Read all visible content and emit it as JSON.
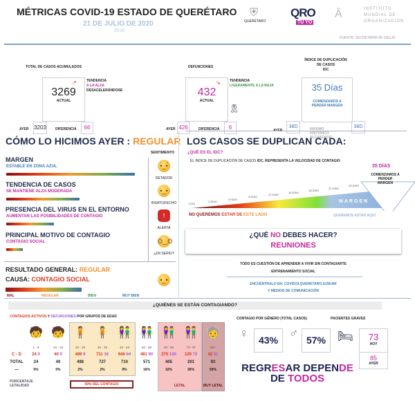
{
  "header": {
    "title": "MÉTRICAS COVID-19 ESTADO DE QUERÉTARO",
    "date": "21 DE JULIO DE 2020",
    "time": "20:30",
    "logo_queretaro": "QUERÉTARO",
    "logo_qro": "QRO",
    "logo_tuyo": "TÚ YO",
    "institute": [
      "INSTITUTO",
      "MUNDIAL DE",
      "ORGANIZACIÓN"
    ],
    "source": "FUENTE: SECRETARÍA DE SALUD."
  },
  "cases": {
    "title": "TOTAL DE CASOS ACUMULADOS",
    "actual": "3269",
    "actual_label": "ACTUAL",
    "trend_label": "TENDENCIA",
    "trend_1": "A LA ALZA",
    "trend_2": "DESACELERÁNDOSE",
    "ayer_label": "AYER",
    "ayer": "3203",
    "diff_label": "DIFERENCIA",
    "diff": "66"
  },
  "deaths": {
    "title": "DEFUNCIONES",
    "actual": "432",
    "actual_label": "ACTUAL",
    "trend_label": "TENDENCIA",
    "trend_1": "LIGERAMENTE A LA BAJA",
    "ayer_label": "AYER",
    "ayer": "426",
    "diff_label": "DIFERENCIA",
    "diff": "6"
  },
  "idc": {
    "title_1": "ÍNDICE DE DUPLICACIÓN",
    "title_2": "DE CASOS",
    "title_3": "IDC",
    "value": "35 Días",
    "note": "COMENZAMOS A PERDER MARGEN",
    "ayer_label": "AYER",
    "ayer": "38D",
    "max_label": "MÁXIMO HISTÓRICO ALCANZADO",
    "max": "38D"
  },
  "yesterday": {
    "title": "CÓMO LO HICIMOS AYER :",
    "rating": "REGULAR",
    "sentiment_label": "SENTIMIENTO",
    "items": [
      {
        "title": "MARGEN",
        "sub": "ESTABLE EN ZONA AZUL",
        "level": 1.0,
        "face": "RETADOR"
      },
      {
        "title": "TENDENCIA DE CASOS",
        "sub": "SE MANTIENE ALZA MODERADA",
        "level": 0.57,
        "face": "INSATISFECHO"
      },
      {
        "title": "PRESENCIA DEL VIRUS EN EL ENTORNO",
        "sub": "AUMENTAN LAS POSIBILIDADES DE CONTAGIO",
        "level": 0.37,
        "face": "ALERTA"
      },
      {
        "title": "PRINCIPAL MOTIVO DE CONTAGIO",
        "sub": "CONTAGIO SOCIAL",
        "level": 0.13,
        "face": "¿EN SERIO?"
      }
    ],
    "result_label": "RESULTADO GENERAL:",
    "result": "REGULAR",
    "cause_label": "CAUSA:",
    "cause": "CONTAGIO SOCIAL",
    "result_level": 0.58,
    "scale": [
      "MAL",
      "REGULAR",
      "BIEN",
      "MUY BIEN"
    ]
  },
  "duplication": {
    "title": "LOS CASOS SE DUPLICAN CADA:",
    "q": "¿QUÉ ES EL IDC?",
    "desc_1": "EL ÍNDICE DE DUPLICACIÓN DE CASOS ",
    "desc_2": "IDC, REPRESENTA LA VELOCIDAD DE CONTAGIO",
    "current": "35 DÍAS",
    "callout": "COMENZAMOS A PERDER MARGEN",
    "scale": [
      "1 DÍA",
      "3 DÍAS",
      "6 DÍAS",
      "9 DÍAS",
      "12 DÍAS",
      "15 DÍAS",
      "18 DÍAS",
      "21 DÍAS",
      "25 DÍAS"
    ],
    "margin": "MARGEN",
    "bad_1": "NO QUEREMOS ",
    "bad_2": "ESTAR DE ",
    "bad_3": "ESTE LADO",
    "good": "QUEREMOS ESTAR AQUÍ"
  },
  "dont": {
    "q_1": "¿QUÉ ",
    "q_2": "NO",
    "q_3": " DEBES HACER?",
    "answer": "REUNIONES"
  },
  "message": {
    "line_1": "TODO ES CUESTIÓN DE APRENDER A VIVIR SIN CONTAGIARTE",
    "line_2": "ENTRENAMIENTO SOCIAL",
    "link_1": "ENCUÉNTRALO EN: COVID19.QUERETARO.GOB.MX",
    "link_2": "Y MEDIOS DE COMUNICACIÓN"
  },
  "who": {
    "title": "¿QUIÉNES SE ESTÁN CONTAGIANDO?",
    "sub_1": "CONTAGIOS ACTIVOS",
    "sub_2": " Y ",
    "sub_3": "DEFUNCIONES",
    "sub_4": " POR GRUPOS DE EDAD",
    "cd_label": "C - D",
    "total_label": "TOTAL",
    "lethality_label": "PORCENTAJE LETALIDAD",
    "groups": [
      {
        "age": "1 - 9",
        "c": "24",
        "d": "0",
        "total": "24",
        "pct": "0%"
      },
      {
        "age": "10 - 19",
        "c": "40",
        "d": "0",
        "total": "40",
        "pct": "0%"
      },
      {
        "age": "20 - 29",
        "c": "489",
        "d": "9",
        "total": "498",
        "pct": "2%"
      },
      {
        "age": "30 - 39",
        "c": "711",
        "d": "16",
        "total": "727",
        "pct": "2%"
      },
      {
        "age": "40 - 49",
        "c": "646",
        "d": "64",
        "total": "710",
        "pct": "9%"
      },
      {
        "age": "50 - 59",
        "c": "481",
        "d": "90",
        "total": "571",
        "pct": "16%"
      },
      {
        "age": "60 - 69",
        "c": "275",
        "d": "130",
        "total": "405",
        "pct": "32%"
      },
      {
        "age": "70- 79",
        "c": "129",
        "d": "72",
        "total": "201",
        "pct": "36%"
      },
      {
        "age": "80+",
        "c": "42",
        "d": "51",
        "total": "93",
        "pct": "55%"
      }
    ],
    "contagion_note_pct": "59%",
    "contagion_note": " DEL CONTAGIO",
    "letal": "LETAL",
    "muy_letal": "MUY LETAL"
  },
  "gender": {
    "title": "CONTAGIO POR GÉNERO (TOTAL CASOS)",
    "female": "43%",
    "male": "57%"
  },
  "severe": {
    "title": "PACIENTES GRAVES",
    "today": "73",
    "today_label": "HOY",
    "yesterday": "85",
    "yesterday_label": "AYER"
  },
  "slogan": {
    "p1": "REGR",
    "p2": "ES",
    "p3": "AR DEPEN",
    "p4": "DE",
    "p5": "DE ",
    "p6": "TODOS"
  }
}
